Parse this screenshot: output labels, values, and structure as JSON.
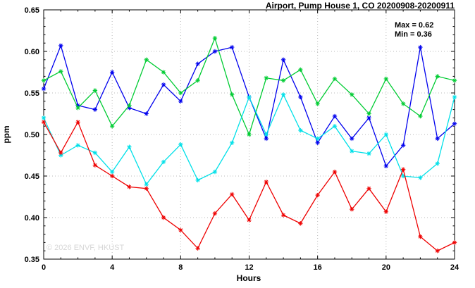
{
  "title": "Airport, Pump House 1, CO 20200908-20200911",
  "annotations": {
    "max": "Max = 0.62",
    "min": "Min = 0.36"
  },
  "watermark": "© 2026 ENVF, HKUST",
  "chart_data": {
    "type": "line",
    "title": "Airport, Pump House 1, CO 20200908-20200911",
    "xlabel": "Hours",
    "ylabel": "ppm",
    "xlim": [
      0,
      24
    ],
    "ylim": [
      0.35,
      0.65
    ],
    "xticks": [
      0,
      4,
      8,
      12,
      16,
      20,
      24
    ],
    "yticks": [
      0.35,
      0.4,
      0.45,
      0.5,
      0.55,
      0.6,
      0.65
    ],
    "grid": true,
    "legend_position": "none",
    "marker": "asterisk",
    "x": [
      0,
      1,
      2,
      3,
      4,
      5,
      6,
      7,
      8,
      9,
      10,
      11,
      12,
      13,
      14,
      15,
      16,
      17,
      18,
      19,
      20,
      21,
      22,
      23,
      24
    ],
    "series": [
      {
        "name": "series-blue",
        "color": "#0000ee",
        "values": [
          0.555,
          0.607,
          0.535,
          0.53,
          0.575,
          0.532,
          0.525,
          0.56,
          0.54,
          0.585,
          0.6,
          0.605,
          0.545,
          0.495,
          0.59,
          0.545,
          0.49,
          0.522,
          0.495,
          0.52,
          0.462,
          0.487,
          0.605,
          0.495,
          0.513
        ]
      },
      {
        "name": "series-green",
        "color": "#00cc33",
        "values": [
          0.565,
          0.576,
          0.532,
          0.553,
          0.51,
          0.535,
          0.59,
          0.575,
          0.55,
          0.565,
          0.616,
          0.548,
          0.5,
          0.568,
          0.565,
          0.578,
          0.537,
          0.567,
          0.548,
          0.525,
          0.567,
          0.537,
          0.522,
          0.57,
          0.565
        ]
      },
      {
        "name": "series-cyan",
        "color": "#00e0e8",
        "values": [
          0.52,
          0.475,
          0.487,
          0.478,
          0.455,
          0.485,
          0.44,
          0.467,
          0.488,
          0.445,
          0.455,
          0.49,
          0.545,
          0.5,
          0.548,
          0.505,
          0.495,
          0.51,
          0.48,
          0.477,
          0.5,
          0.45,
          0.448,
          0.465,
          0.545
        ]
      },
      {
        "name": "series-red",
        "color": "#ee0000",
        "values": [
          0.515,
          0.478,
          0.515,
          0.463,
          0.45,
          0.437,
          0.435,
          0.4,
          0.385,
          0.363,
          0.405,
          0.428,
          0.397,
          0.443,
          0.403,
          0.393,
          0.427,
          0.455,
          0.41,
          0.435,
          0.407,
          0.458,
          0.377,
          0.36,
          0.37
        ]
      }
    ]
  }
}
